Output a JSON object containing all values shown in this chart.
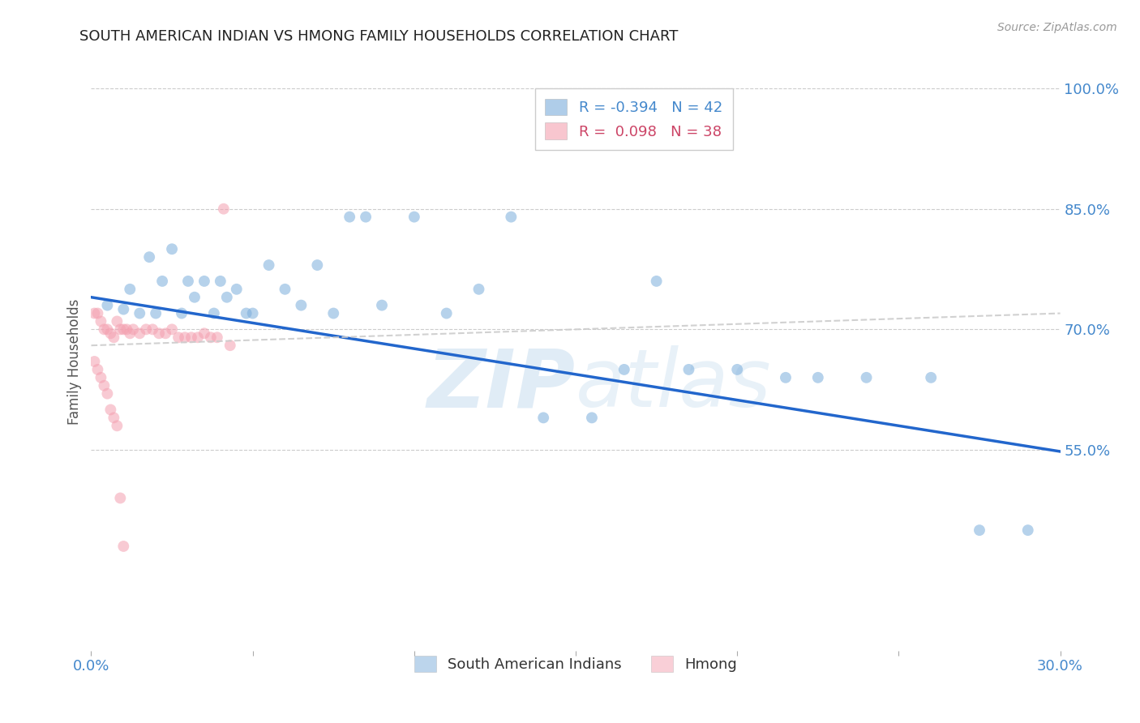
{
  "title": "SOUTH AMERICAN INDIAN VS HMONG FAMILY HOUSEHOLDS CORRELATION CHART",
  "source": "Source: ZipAtlas.com",
  "ylabel": "Family Households",
  "xlim": [
    0.0,
    0.3
  ],
  "ylim": [
    0.3,
    1.02
  ],
  "grid_color": "#cccccc",
  "background_color": "#ffffff",
  "watermark_zip": "ZIP",
  "watermark_atlas": "atlas",
  "blue_scatter_x": [
    0.005,
    0.01,
    0.012,
    0.015,
    0.018,
    0.02,
    0.022,
    0.025,
    0.028,
    0.03,
    0.032,
    0.035,
    0.038,
    0.04,
    0.042,
    0.045,
    0.048,
    0.05,
    0.055,
    0.06,
    0.065,
    0.07,
    0.075,
    0.08,
    0.085,
    0.09,
    0.1,
    0.11,
    0.12,
    0.13,
    0.14,
    0.155,
    0.165,
    0.175,
    0.185,
    0.2,
    0.215,
    0.225,
    0.24,
    0.26,
    0.275,
    0.29
  ],
  "blue_scatter_y": [
    0.73,
    0.725,
    0.75,
    0.72,
    0.79,
    0.72,
    0.76,
    0.8,
    0.72,
    0.76,
    0.74,
    0.76,
    0.72,
    0.76,
    0.74,
    0.75,
    0.72,
    0.72,
    0.78,
    0.75,
    0.73,
    0.78,
    0.72,
    0.84,
    0.84,
    0.73,
    0.84,
    0.72,
    0.75,
    0.84,
    0.59,
    0.59,
    0.65,
    0.76,
    0.65,
    0.65,
    0.64,
    0.64,
    0.64,
    0.64,
    0.45,
    0.45
  ],
  "pink_scatter_x": [
    0.001,
    0.002,
    0.003,
    0.004,
    0.005,
    0.006,
    0.007,
    0.008,
    0.009,
    0.01,
    0.011,
    0.012,
    0.013,
    0.015,
    0.017,
    0.019,
    0.021,
    0.023,
    0.025,
    0.027,
    0.029,
    0.031,
    0.033,
    0.035,
    0.037,
    0.039,
    0.041,
    0.043,
    0.001,
    0.002,
    0.003,
    0.004,
    0.005,
    0.006,
    0.007,
    0.008,
    0.009,
    0.01
  ],
  "pink_scatter_y": [
    0.72,
    0.72,
    0.71,
    0.7,
    0.7,
    0.695,
    0.69,
    0.71,
    0.7,
    0.7,
    0.7,
    0.695,
    0.7,
    0.695,
    0.7,
    0.7,
    0.695,
    0.695,
    0.7,
    0.69,
    0.69,
    0.69,
    0.69,
    0.695,
    0.69,
    0.69,
    0.85,
    0.68,
    0.66,
    0.65,
    0.64,
    0.63,
    0.62,
    0.6,
    0.59,
    0.58,
    0.49,
    0.43
  ],
  "blue_line_x": [
    0.0,
    0.3
  ],
  "blue_line_y": [
    0.74,
    0.548
  ],
  "pink_line_x": [
    0.0,
    0.3
  ],
  "pink_line_y": [
    0.68,
    0.72
  ],
  "blue_color": "#7aaddb",
  "pink_color": "#f4a0b0",
  "blue_line_color": "#2266cc",
  "pink_line_color": "#cccccc",
  "scatter_alpha": 0.55,
  "scatter_size": 100,
  "ytick_positions": [
    0.55,
    0.7,
    0.85,
    1.0
  ],
  "ytick_labels": [
    "55.0%",
    "70.0%",
    "85.0%",
    "100.0%"
  ],
  "xtick_positions": [
    0.0,
    0.05,
    0.1,
    0.15,
    0.2,
    0.25,
    0.3
  ],
  "xtick_labels": [
    "0.0%",
    "",
    "",
    "",
    "",
    "",
    "30.0%"
  ]
}
